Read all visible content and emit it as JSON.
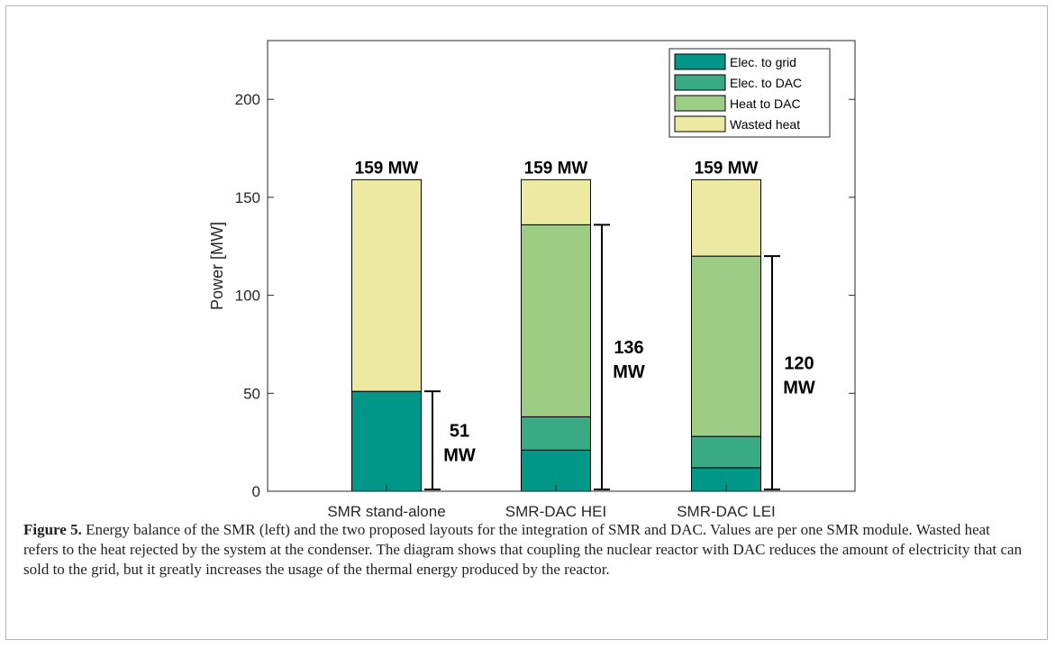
{
  "chart_data": {
    "type": "bar",
    "stacked": true,
    "categories": [
      "SMR stand-alone",
      "SMR-DAC HEI",
      "SMR-DAC LEI"
    ],
    "series": [
      {
        "name": "Elec. to grid",
        "color": "#009688",
        "values": [
          51,
          21,
          12
        ]
      },
      {
        "name": "Elec. to DAC",
        "color": "#3aaa84",
        "values": [
          0,
          17,
          16
        ]
      },
      {
        "name": "Heat to DAC",
        "color": "#9dcd84",
        "values": [
          0,
          98,
          92
        ]
      },
      {
        "name": "Wasted heat",
        "color": "#ede8a2",
        "values": [
          108,
          23,
          39
        ]
      }
    ],
    "totals": [
      "159 MW",
      "159 MW",
      "159 MW"
    ],
    "brackets": [
      {
        "category": "SMR stand-alone",
        "value": 51,
        "label_top": "51",
        "label_bottom": "MW"
      },
      {
        "category": "SMR-DAC HEI",
        "value": 136,
        "label_top": "136",
        "label_bottom": "MW"
      },
      {
        "category": "SMR-DAC LEI",
        "value": 120,
        "label_top": "120",
        "label_bottom": "MW"
      }
    ],
    "ylabel": "Power [MW]",
    "xlabel": "",
    "ylim": [
      0,
      230
    ],
    "yticks": [
      0,
      50,
      100,
      150,
      200
    ],
    "legend_position": "top-right",
    "grid": false
  },
  "caption": {
    "label": "Figure 5.",
    "text": " Energy balance of the SMR (left) and the two proposed layouts for the integration of SMR and DAC. Values are per one SMR module. Wasted heat refers to the heat rejected by the system at the condenser. The diagram shows that coupling the nuclear reactor with DAC reduces the amount of electricity that can sold to the grid, but it greatly increases the usage of the thermal energy produced by the reactor."
  }
}
